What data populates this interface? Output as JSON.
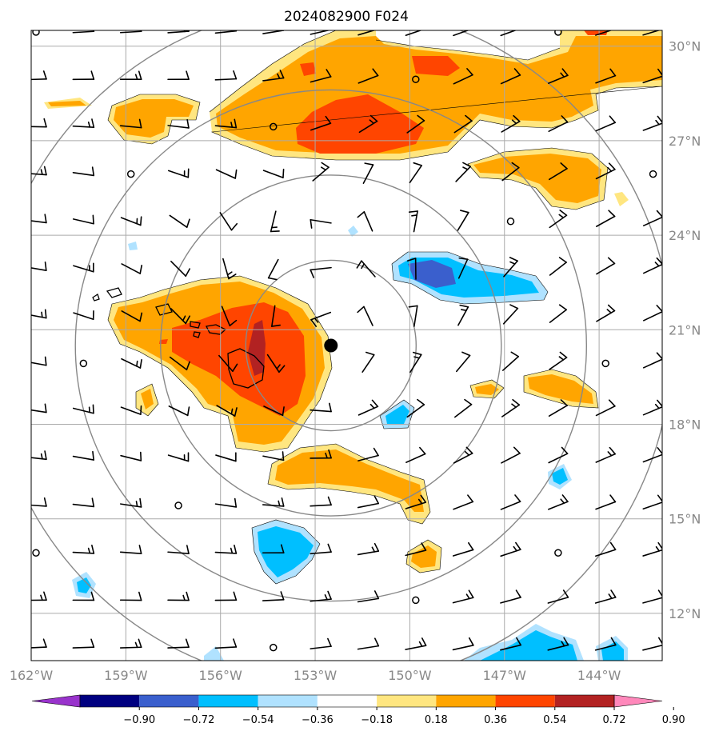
{
  "map": {
    "title": "2024082900 F024",
    "latitudes": [
      {
        "label": "30°N",
        "deg": 30
      },
      {
        "label": "27°N",
        "deg": 27
      },
      {
        "label": "24°N",
        "deg": 24
      },
      {
        "label": "21°N",
        "deg": 21
      },
      {
        "label": "18°N",
        "deg": 18
      },
      {
        "label": "15°N",
        "deg": 15
      },
      {
        "label": "12°N",
        "deg": 12
      }
    ],
    "longitudes": [
      {
        "label": "162°W",
        "deg": -162
      },
      {
        "label": "159°W",
        "deg": -159
      },
      {
        "label": "156°W",
        "deg": -156
      },
      {
        "label": "153°W",
        "deg": -153
      },
      {
        "label": "150°W",
        "deg": -150
      },
      {
        "label": "147°W",
        "deg": -147
      },
      {
        "label": "144°W",
        "deg": -144
      }
    ],
    "extent": {
      "lon_min": -162.0,
      "lon_max": -142.0,
      "lat_min": 10.5,
      "lat_max": 30.5
    },
    "storm_center": {
      "lon": -152.5,
      "lat": 20.5
    },
    "range_rings_deg": [
      2.7,
      5.4,
      8.1,
      10.8
    ],
    "colorbar": {
      "ticks": [
        "−0.90",
        "−0.72",
        "−0.54",
        "−0.36",
        "−0.18",
        "0.18",
        "0.36",
        "0.54",
        "0.72",
        "0.90"
      ],
      "colors": [
        "#9933cc",
        "#000080",
        "#3a5fcd",
        "#00bfff",
        "#b0e2ff",
        "#ffffff",
        "#ffe680",
        "#ffa500",
        "#ff4500",
        "#b22222",
        "#ff88bb"
      ]
    },
    "colors": {
      "pos1": "#ffe680",
      "pos2": "#ffa500",
      "pos3": "#ff4500",
      "pos4": "#b22222",
      "neg1": "#b0e2ff",
      "neg2": "#00bfff",
      "neg3": "#3a5fcd"
    }
  }
}
